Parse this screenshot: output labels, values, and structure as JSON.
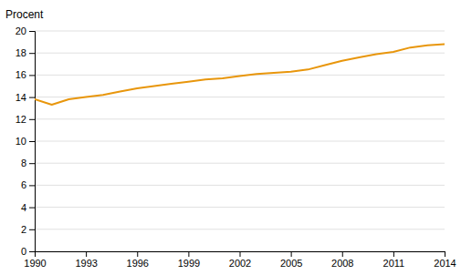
{
  "chart_data": {
    "type": "line",
    "ylabel": "Procent",
    "x": [
      1990,
      1991,
      1992,
      1993,
      1994,
      1995,
      1996,
      1997,
      1998,
      1999,
      2000,
      2001,
      2002,
      2003,
      2004,
      2005,
      2006,
      2007,
      2008,
      2009,
      2010,
      2011,
      2012,
      2013,
      2014
    ],
    "values": [
      13.8,
      13.3,
      13.8,
      14.0,
      14.2,
      14.5,
      14.8,
      15.0,
      15.2,
      15.4,
      15.6,
      15.7,
      15.9,
      16.1,
      16.2,
      16.3,
      16.5,
      16.9,
      17.3,
      17.6,
      17.9,
      18.1,
      18.5,
      18.7,
      18.8
    ],
    "color": "#E8960C",
    "xlim": [
      1990,
      2014
    ],
    "xticks": [
      1990,
      1993,
      1996,
      1999,
      2002,
      2005,
      2008,
      2011,
      2014
    ],
    "ylim": [
      0,
      20
    ],
    "yticks": [
      0,
      2,
      4,
      6,
      8,
      10,
      12,
      14,
      16,
      18,
      20
    ],
    "grid": true
  }
}
